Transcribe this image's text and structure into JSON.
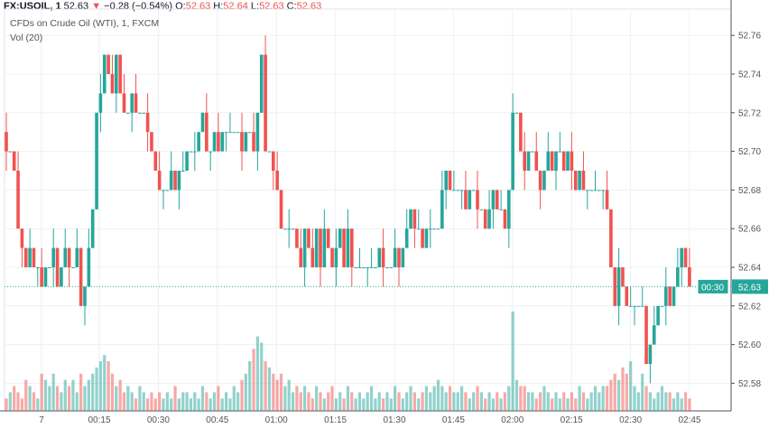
{
  "header": {
    "symbol": "FX:USOIL, 1",
    "last": "52.63",
    "arrow": "▼",
    "change": "−0.28 (−0.54%)",
    "o_label": "O:",
    "o": "52.63",
    "h_label": "H:",
    "h": "52.64",
    "l_label": "L:",
    "l": "52.63",
    "c_label": "C:",
    "c": "52.63"
  },
  "legend": {
    "title": "CFDs on Crude Oil (WTI), 1, FXCM",
    "vol": "Vol (20)"
  },
  "colors": {
    "up": "#26a69a",
    "down": "#ef5350",
    "grid": "#eef0f3"
  },
  "chart_data": {
    "type": "candlestick",
    "start_time": "23:51",
    "interval_minutes": 1,
    "ylim": [
      52.56,
      52.77
    ],
    "yticks": [
      "52.76",
      "52.74",
      "52.72",
      "52.70",
      "52.68",
      "52.66",
      "52.64",
      "52.62",
      "52.60",
      "52.58"
    ],
    "xticks": [
      "7",
      "00:15",
      "00:30",
      "00:45",
      "01:00",
      "01:15",
      "01:30",
      "01:45",
      "02:00",
      "02:15",
      "02:30",
      "02:45"
    ],
    "last_price_label": "52.63",
    "countdown_label": "00:30",
    "first_open": 52.71,
    "closes": [
      52.7,
      52.7,
      52.69,
      52.66,
      52.65,
      52.64,
      52.65,
      52.64,
      52.64,
      52.63,
      52.64,
      52.64,
      52.65,
      52.63,
      52.64,
      52.65,
      52.64,
      52.64,
      52.65,
      52.62,
      52.63,
      52.65,
      52.67,
      52.72,
      52.73,
      52.75,
      52.74,
      52.73,
      52.75,
      52.73,
      52.72,
      52.72,
      52.73,
      52.72,
      52.72,
      52.72,
      52.71,
      52.7,
      52.69,
      52.68,
      52.68,
      52.68,
      52.69,
      52.68,
      52.69,
      52.69,
      52.7,
      52.7,
      52.7,
      52.71,
      52.72,
      52.7,
      52.7,
      52.71,
      52.7,
      52.71,
      52.71,
      52.71,
      52.71,
      52.71,
      52.7,
      52.71,
      52.71,
      52.7,
      52.72,
      52.75,
      52.7,
      52.7,
      52.69,
      52.68,
      52.66,
      52.66,
      52.66,
      52.66,
      52.65,
      52.64,
      52.66,
      52.65,
      52.64,
      52.66,
      52.64,
      52.66,
      52.65,
      52.64,
      52.65,
      52.66,
      52.64,
      52.66,
      52.64,
      52.64,
      52.64,
      52.64,
      52.64,
      52.64,
      52.64,
      52.65,
      52.64,
      52.64,
      52.64,
      52.65,
      52.64,
      52.65,
      52.66,
      52.67,
      52.66,
      52.66,
      52.65,
      52.66,
      52.66,
      52.66,
      52.66,
      52.68,
      52.69,
      52.68,
      52.68,
      52.68,
      52.68,
      52.67,
      52.68,
      52.68,
      52.67,
      52.67,
      52.66,
      52.67,
      52.68,
      52.67,
      52.67,
      52.66,
      52.68,
      52.72,
      52.72,
      52.7,
      52.69,
      52.7,
      52.7,
      52.69,
      52.68,
      52.69,
      52.7,
      52.69,
      52.7,
      52.7,
      52.69,
      52.7,
      52.69,
      52.68,
      52.69,
      52.68,
      52.68,
      52.68,
      52.68,
      52.68,
      52.68,
      52.67,
      52.64,
      52.62,
      52.64,
      52.63,
      52.62,
      52.62,
      52.62,
      52.62,
      52.62,
      52.59,
      52.6,
      52.61,
      52.62,
      52.62,
      52.63,
      52.62,
      52.63,
      52.64,
      52.65,
      52.64,
      52.63
    ],
    "volumes": [
      2,
      3,
      4,
      3,
      2,
      5,
      4,
      3,
      2,
      6,
      5,
      4,
      6,
      4,
      3,
      5,
      4,
      5,
      3,
      6,
      4,
      5,
      6,
      7,
      8,
      9,
      8,
      6,
      4,
      5,
      3,
      4,
      3,
      2,
      4,
      3,
      2,
      3,
      2,
      3,
      2,
      3,
      2,
      4,
      2,
      3,
      3,
      2,
      3,
      2,
      4,
      3,
      2,
      3,
      4,
      2,
      3,
      2,
      4,
      3,
      5,
      6,
      8,
      10,
      12,
      11,
      8,
      7,
      6,
      5,
      6,
      4,
      5,
      3,
      4,
      3,
      4,
      3,
      2,
      4,
      3,
      2,
      3,
      4,
      2,
      3,
      2,
      4,
      3,
      2,
      3,
      2,
      3,
      4,
      2,
      3,
      2,
      3,
      2,
      4,
      3,
      2,
      3,
      4,
      3,
      2,
      3,
      4,
      3,
      4,
      5,
      4,
      3,
      4,
      3,
      3,
      4,
      3,
      2,
      3,
      4,
      3,
      2,
      3,
      2,
      3,
      2,
      3,
      4,
      16,
      5,
      4,
      4,
      3,
      3,
      2,
      3,
      4,
      3,
      2,
      3,
      2,
      3,
      2,
      3,
      2,
      4,
      3,
      2,
      3,
      4,
      3,
      4,
      4,
      5,
      6,
      5,
      7,
      6,
      8,
      4,
      3,
      6,
      4,
      3,
      2,
      3,
      4,
      3,
      3,
      2,
      3,
      2,
      3,
      2
    ]
  }
}
